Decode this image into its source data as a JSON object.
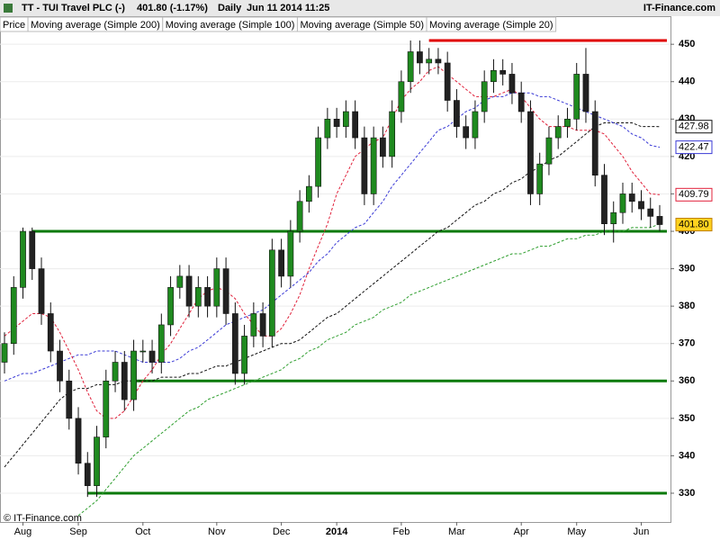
{
  "chart_data": {
    "type": "candlestick",
    "title": "TT - TUI Travel PLC (-)",
    "quote": "401.80 (-1.17%)",
    "interval": "Daily",
    "timestamp": "Jun 11 2014 11:25",
    "source": "IT-Finance.com",
    "copyright": "© IT-Finance.com",
    "categories": [
      null,
      null,
      "Aug",
      null,
      null,
      null,
      null,
      null,
      "Sep",
      null,
      null,
      null,
      null,
      null,
      null,
      "Oct",
      null,
      null,
      null,
      null,
      null,
      null,
      null,
      "Nov",
      null,
      null,
      null,
      null,
      null,
      null,
      "Dec",
      null,
      null,
      null,
      null,
      null,
      "2014",
      null,
      null,
      null,
      null,
      null,
      null,
      "Feb",
      null,
      null,
      null,
      null,
      null,
      "Mar",
      null,
      null,
      null,
      null,
      null,
      null,
      "Apr",
      null,
      null,
      null,
      null,
      null,
      "May",
      null,
      null,
      null,
      null,
      null,
      null,
      "Jun",
      null,
      null
    ],
    "price": {
      "name": "Price",
      "up_color": "#1f8a1f",
      "down_color": "#222222",
      "last_label": "401.80",
      "open": [
        365,
        370,
        385,
        400,
        390,
        378,
        368,
        360,
        350,
        338,
        332,
        345,
        360,
        365,
        355,
        368,
        368,
        365,
        375,
        385,
        388,
        380,
        385,
        380,
        390,
        378,
        362,
        372,
        378,
        372,
        395,
        388,
        400,
        408,
        412,
        425,
        430,
        428,
        432,
        425,
        410,
        425,
        420,
        432,
        440,
        448,
        445,
        446,
        445,
        435,
        428,
        425,
        432,
        440,
        443,
        442,
        437,
        432,
        410,
        418,
        425,
        428,
        430,
        442,
        432,
        415,
        402,
        405,
        410,
        408,
        406,
        404
      ],
      "high": [
        373,
        388,
        401,
        401,
        393,
        381,
        371,
        363,
        353,
        341,
        348,
        363,
        368,
        368,
        371,
        371,
        371,
        378,
        388,
        391,
        391,
        388,
        388,
        393,
        393,
        381,
        375,
        381,
        381,
        398,
        398,
        403,
        411,
        415,
        428,
        433,
        433,
        435,
        435,
        428,
        428,
        428,
        435,
        443,
        451,
        451,
        449,
        449,
        448,
        438,
        431,
        435,
        443,
        446,
        446,
        445,
        440,
        435,
        421,
        428,
        431,
        433,
        445,
        449,
        435,
        418,
        408,
        413,
        413,
        411,
        409,
        407
      ],
      "low": [
        362,
        367,
        382,
        387,
        375,
        365,
        357,
        347,
        335,
        329,
        329,
        342,
        357,
        352,
        352,
        365,
        362,
        362,
        372,
        382,
        377,
        377,
        377,
        377,
        375,
        359,
        359,
        369,
        369,
        369,
        385,
        385,
        397,
        405,
        409,
        422,
        425,
        425,
        422,
        407,
        407,
        417,
        417,
        429,
        437,
        442,
        442,
        442,
        432,
        425,
        422,
        422,
        429,
        437,
        439,
        434,
        429,
        407,
        407,
        415,
        422,
        425,
        427,
        429,
        412,
        399,
        397,
        402,
        405,
        403,
        401,
        400
      ],
      "close": [
        370,
        385,
        400,
        390,
        378,
        368,
        360,
        350,
        338,
        332,
        345,
        360,
        365,
        355,
        368,
        368,
        365,
        375,
        385,
        388,
        380,
        385,
        380,
        390,
        378,
        362,
        372,
        378,
        372,
        395,
        388,
        400,
        408,
        412,
        425,
        430,
        428,
        432,
        425,
        410,
        425,
        420,
        432,
        440,
        448,
        445,
        446,
        445,
        435,
        428,
        425,
        432,
        440,
        443,
        442,
        437,
        432,
        410,
        418,
        425,
        428,
        430,
        442,
        432,
        415,
        402,
        405,
        410,
        408,
        406,
        404,
        401.8
      ]
    },
    "series": [
      {
        "name": "Moving average (Simple 200)",
        "color": "#2e9e2e",
        "values": [
          null,
          null,
          null,
          null,
          null,
          null,
          null,
          null,
          324,
          326,
          328,
          331,
          334,
          337,
          340,
          342,
          344,
          346,
          348,
          350,
          352,
          353,
          355,
          356,
          357,
          358,
          359,
          360,
          361,
          362,
          363,
          365,
          366,
          368,
          369,
          371,
          372,
          373,
          375,
          376,
          377,
          379,
          380,
          381,
          383,
          384,
          385,
          386,
          387,
          388,
          389,
          390,
          391,
          392,
          393,
          394,
          394,
          395,
          396,
          396,
          397,
          398,
          398,
          399,
          399,
          400,
          400,
          400,
          401,
          401,
          401,
          402
        ]
      },
      {
        "name": "Moving average (Simple 100)",
        "color": "#111111",
        "last_label": "427.98",
        "values": [
          337,
          340,
          343,
          346,
          349,
          352,
          355,
          357,
          358,
          358,
          359,
          359,
          359,
          360,
          360,
          360,
          360,
          361,
          361,
          361,
          362,
          362,
          363,
          364,
          364,
          365,
          366,
          367,
          368,
          369,
          370,
          370,
          371,
          373,
          375,
          377,
          378,
          380,
          382,
          384,
          386,
          388,
          390,
          392,
          394,
          396,
          398,
          400,
          401,
          403,
          405,
          407,
          408,
          410,
          411,
          413,
          414,
          416,
          417,
          419,
          420,
          422,
          424,
          426,
          428,
          429,
          429,
          429,
          429,
          428,
          428,
          427.98
        ]
      },
      {
        "name": "Moving average (Simple 50)",
        "color": "#3a3ad6",
        "last_label": "422.47",
        "values": [
          360,
          361,
          362,
          362,
          363,
          364,
          365,
          366,
          367,
          367,
          368,
          368,
          368,
          367,
          366,
          365,
          365,
          365,
          365,
          366,
          368,
          369,
          371,
          373,
          375,
          376,
          377,
          378,
          379,
          381,
          383,
          385,
          387,
          389,
          392,
          394,
          397,
          399,
          401,
          402,
          405,
          408,
          412,
          415,
          418,
          421,
          424,
          427,
          428,
          430,
          432,
          433,
          435,
          436,
          436,
          437,
          437,
          437,
          436,
          436,
          435,
          434,
          433,
          432,
          431,
          430,
          429,
          428,
          426,
          425,
          423,
          422.47
        ]
      },
      {
        "name": "Moving average (Simple 20)",
        "color": "#e0203a",
        "last_label": "409.79",
        "values": [
          372,
          374,
          376,
          378,
          378,
          377,
          373,
          368,
          363,
          357,
          352,
          350,
          350,
          352,
          356,
          360,
          363,
          367,
          370,
          374,
          378,
          382,
          384,
          385,
          384,
          382,
          378,
          375,
          372,
          372,
          374,
          378,
          383,
          390,
          396,
          402,
          410,
          415,
          420,
          422,
          424,
          425,
          430,
          435,
          438,
          440,
          443,
          444,
          442,
          440,
          438,
          436,
          436,
          436,
          437,
          438,
          436,
          433,
          430,
          428,
          428,
          428,
          427,
          427,
          427,
          426,
          423,
          420,
          416,
          413,
          410,
          409.79
        ]
      }
    ],
    "levels": [
      {
        "value": 400,
        "start": 3,
        "color": "#0a7a0a"
      },
      {
        "value": 360,
        "start": 14,
        "color": "#0a7a0a"
      },
      {
        "value": 330,
        "start": 9,
        "color": "#0a7a0a"
      },
      {
        "value": 451,
        "start": 46,
        "color": "#e00000"
      }
    ],
    "ylim": [
      322.3,
      457.5
    ],
    "yticks": [
      330,
      340,
      350,
      360,
      370,
      380,
      390,
      400,
      410,
      420,
      430,
      440,
      450
    ],
    "grid": true
  }
}
